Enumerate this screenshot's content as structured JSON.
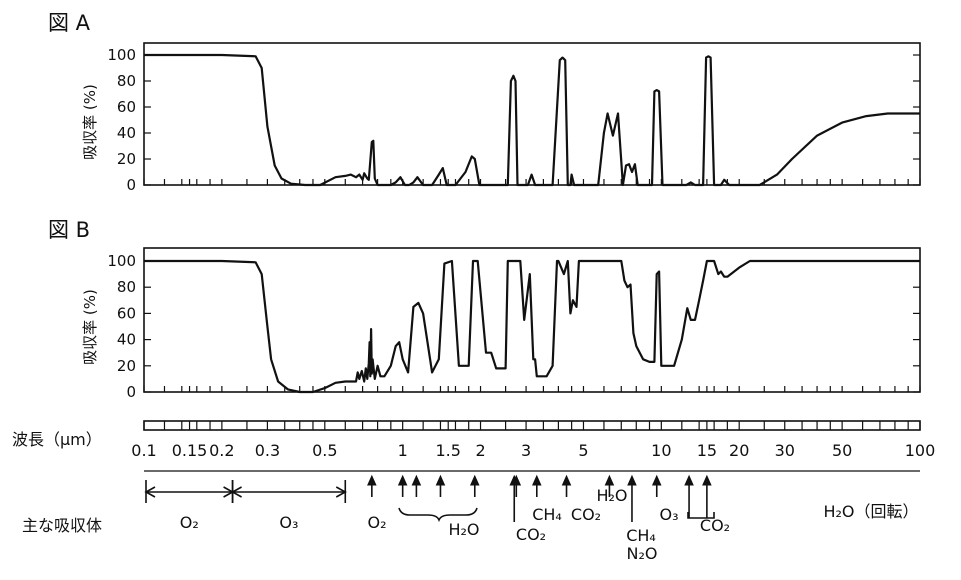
{
  "chart_data": [
    {
      "type": "line",
      "title": "図 A",
      "ylabel": "吸収率 (%)",
      "xlabel": "波長（μm）",
      "x_scale": "log",
      "xlim": [
        0.1,
        100
      ],
      "ylim": [
        0,
        100
      ],
      "yticks": [
        0,
        20,
        40,
        60,
        80,
        100
      ],
      "series": [
        {
          "x": [
            0.1,
            0.2,
            0.27,
            0.285,
            0.3,
            0.32,
            0.34,
            0.37,
            0.42,
            0.48,
            0.55,
            0.6,
            0.63,
            0.66,
            0.68,
            0.7,
            0.71,
            0.73,
            0.74,
            0.76,
            0.77,
            0.78,
            0.8,
            0.9,
            0.94,
            0.98,
            1.02,
            1.06,
            1.1,
            1.14,
            1.2,
            1.3,
            1.38,
            1.43,
            1.48,
            1.6,
            1.75,
            1.85,
            1.9,
            1.98,
            2.05,
            2.3,
            2.55,
            2.62,
            2.68,
            2.73,
            2.78,
            2.85,
            3.05,
            3.15,
            3.25,
            3.4,
            3.8,
            4.05,
            4.15,
            4.25,
            4.35,
            4.45,
            4.5,
            4.6,
            4.8,
            5.3,
            5.7,
            6.0,
            6.2,
            6.5,
            6.8,
            7.1,
            7.3,
            7.5,
            7.7,
            7.9,
            8.1,
            8.4,
            9.2,
            9.4,
            9.6,
            9.8,
            10.1,
            10.3,
            10.6,
            12.0,
            12.5,
            13.0,
            13.5,
            14.0,
            14.5,
            14.9,
            15.2,
            15.5,
            16.0,
            16.5,
            17.0,
            17.5,
            18.3,
            18.9,
            19.6,
            21.0,
            24.0,
            28.0,
            32.0,
            40.0,
            50.0,
            62.0,
            75.0,
            90.0,
            100.0
          ],
          "y": [
            100,
            100,
            99,
            90,
            45,
            15,
            5,
            1,
            0,
            0,
            6,
            7,
            8,
            6,
            8,
            4,
            9,
            5,
            4,
            33,
            34,
            5,
            0,
            0,
            2,
            6,
            0,
            0,
            2,
            6,
            0,
            0,
            8,
            13,
            0,
            0,
            10,
            22,
            20,
            0,
            0,
            0,
            0,
            80,
            84,
            80,
            0,
            0,
            0,
            8,
            0,
            0,
            0,
            96,
            98,
            96,
            0,
            0,
            8,
            0,
            0,
            0,
            0,
            40,
            55,
            38,
            55,
            0,
            15,
            16,
            10,
            16,
            0,
            0,
            0,
            72,
            73,
            72,
            0,
            0,
            0,
            0,
            0,
            2,
            0,
            0,
            0,
            98,
            99,
            98,
            0,
            0,
            0,
            4,
            0,
            0,
            0,
            0,
            0,
            8,
            20,
            38,
            48,
            53,
            55,
            55,
            55
          ]
        }
      ]
    },
    {
      "type": "line",
      "title": "図 B",
      "ylabel": "吸収率 (%)",
      "xlabel": "波長（μm）",
      "x_scale": "log",
      "xlim": [
        0.1,
        100
      ],
      "ylim": [
        0,
        100
      ],
      "yticks": [
        0,
        20,
        40,
        60,
        80,
        100
      ],
      "series": [
        {
          "x": [
            0.1,
            0.2,
            0.27,
            0.285,
            0.3,
            0.31,
            0.33,
            0.36,
            0.4,
            0.45,
            0.5,
            0.55,
            0.6,
            0.63,
            0.66,
            0.67,
            0.68,
            0.695,
            0.71,
            0.72,
            0.73,
            0.74,
            0.745,
            0.75,
            0.755,
            0.76,
            0.765,
            0.78,
            0.8,
            0.82,
            0.85,
            0.9,
            0.94,
            0.97,
            1.0,
            1.05,
            1.1,
            1.15,
            1.2,
            1.3,
            1.38,
            1.45,
            1.55,
            1.65,
            1.8,
            1.87,
            1.95,
            2.1,
            2.2,
            2.3,
            2.5,
            2.55,
            2.6,
            2.85,
            2.95,
            3.1,
            3.2,
            3.25,
            3.3,
            3.45,
            3.6,
            3.8,
            3.95,
            4.0,
            4.2,
            4.35,
            4.45,
            4.55,
            4.7,
            4.8,
            4.9,
            5.0,
            5.3,
            5.6,
            6.2,
            6.8,
            7.0,
            7.2,
            7.4,
            7.6,
            7.8,
            8.0,
            8.5,
            9.0,
            9.4,
            9.6,
            9.8,
            10.0,
            10.3,
            10.6,
            11.2,
            12.0,
            12.6,
            13.0,
            13.5,
            14.0,
            14.5,
            15.0,
            16.0,
            16.6,
            17.0,
            17.5,
            18.0,
            20.0,
            22.0,
            25.0,
            30.0,
            40.0,
            60.0,
            100.0
          ],
          "y": [
            100,
            100,
            99,
            90,
            50,
            25,
            8,
            2,
            0,
            0,
            3,
            7,
            8,
            8,
            8,
            15,
            10,
            16,
            8,
            18,
            10,
            22,
            38,
            12,
            48,
            14,
            25,
            10,
            20,
            12,
            12,
            20,
            35,
            38,
            25,
            15,
            65,
            68,
            60,
            15,
            25,
            98,
            100,
            20,
            20,
            100,
            100,
            30,
            30,
            18,
            18,
            100,
            100,
            100,
            55,
            90,
            25,
            25,
            12,
            12,
            12,
            20,
            100,
            100,
            90,
            100,
            60,
            70,
            65,
            100,
            100,
            100,
            100,
            100,
            100,
            100,
            100,
            85,
            80,
            82,
            45,
            35,
            25,
            23,
            23,
            90,
            92,
            20,
            20,
            20,
            20,
            40,
            64,
            55,
            55,
            70,
            85,
            100,
            100,
            90,
            92,
            88,
            88,
            95,
            100,
            100,
            100,
            100,
            100,
            100
          ]
        }
      ]
    }
  ],
  "wavelength_axis": {
    "label": "波長（μm）",
    "ticks": [
      {
        "value": 0.1,
        "label": "0.1"
      },
      {
        "value": 0.15,
        "label": "0.15"
      },
      {
        "value": 0.2,
        "label": "0.2"
      },
      {
        "value": 0.3,
        "label": "0.3"
      },
      {
        "value": 0.5,
        "label": "0.5"
      },
      {
        "value": 1,
        "label": "1"
      },
      {
        "value": 1.5,
        "label": "1.5"
      },
      {
        "value": 2,
        "label": "2"
      },
      {
        "value": 3,
        "label": "3"
      },
      {
        "value": 5,
        "label": "5"
      },
      {
        "value": 10,
        "label": "10"
      },
      {
        "value": 15,
        "label": "15"
      },
      {
        "value": 20,
        "label": "20"
      },
      {
        "value": 30,
        "label": "30"
      },
      {
        "value": 50,
        "label": "50"
      },
      {
        "value": 100,
        "label": "100"
      }
    ],
    "minor_ticks": [
      0.12,
      0.14,
      0.16,
      0.18,
      0.25,
      0.35,
      0.4,
      0.45,
      0.6,
      0.7,
      0.8,
      0.9,
      1.2,
      1.4,
      1.6,
      1.8,
      2.5,
      3.5,
      4,
      4.5,
      6,
      7,
      8,
      9,
      12,
      14,
      16,
      18,
      25,
      35,
      40,
      45,
      60,
      70,
      80,
      90
    ]
  },
  "absorbers": {
    "label": "主な吸収体",
    "o2_uv": {
      "label": "O₂",
      "from": 0.1,
      "to": 0.22
    },
    "o3_uv": {
      "label": "O₃",
      "from": 0.22,
      "to": 0.6
    },
    "arrows": [
      0.76,
      1.0,
      1.13,
      1.4,
      1.9,
      2.7,
      2.75,
      3.3,
      4.3,
      6.3,
      7.7,
      9.6,
      12.8,
      15.0
    ],
    "labels": [
      {
        "id": "o2-nir",
        "text": "O₂"
      },
      {
        "id": "h2o-nir",
        "text": "H₂O"
      },
      {
        "id": "co2-27",
        "text": "CO₂"
      },
      {
        "id": "ch4-33",
        "text": "CH₄"
      },
      {
        "id": "co2-43",
        "text": "CO₂"
      },
      {
        "id": "h2o-63",
        "text": "H₂O"
      },
      {
        "id": "ch4-77",
        "text": "CH₄"
      },
      {
        "id": "n2o-77",
        "text": "N₂O"
      },
      {
        "id": "o3-96",
        "text": "O₃"
      },
      {
        "id": "co2-15",
        "text": "CO₂"
      },
      {
        "id": "h2o-rot",
        "text": "H₂O（回転）"
      }
    ]
  }
}
